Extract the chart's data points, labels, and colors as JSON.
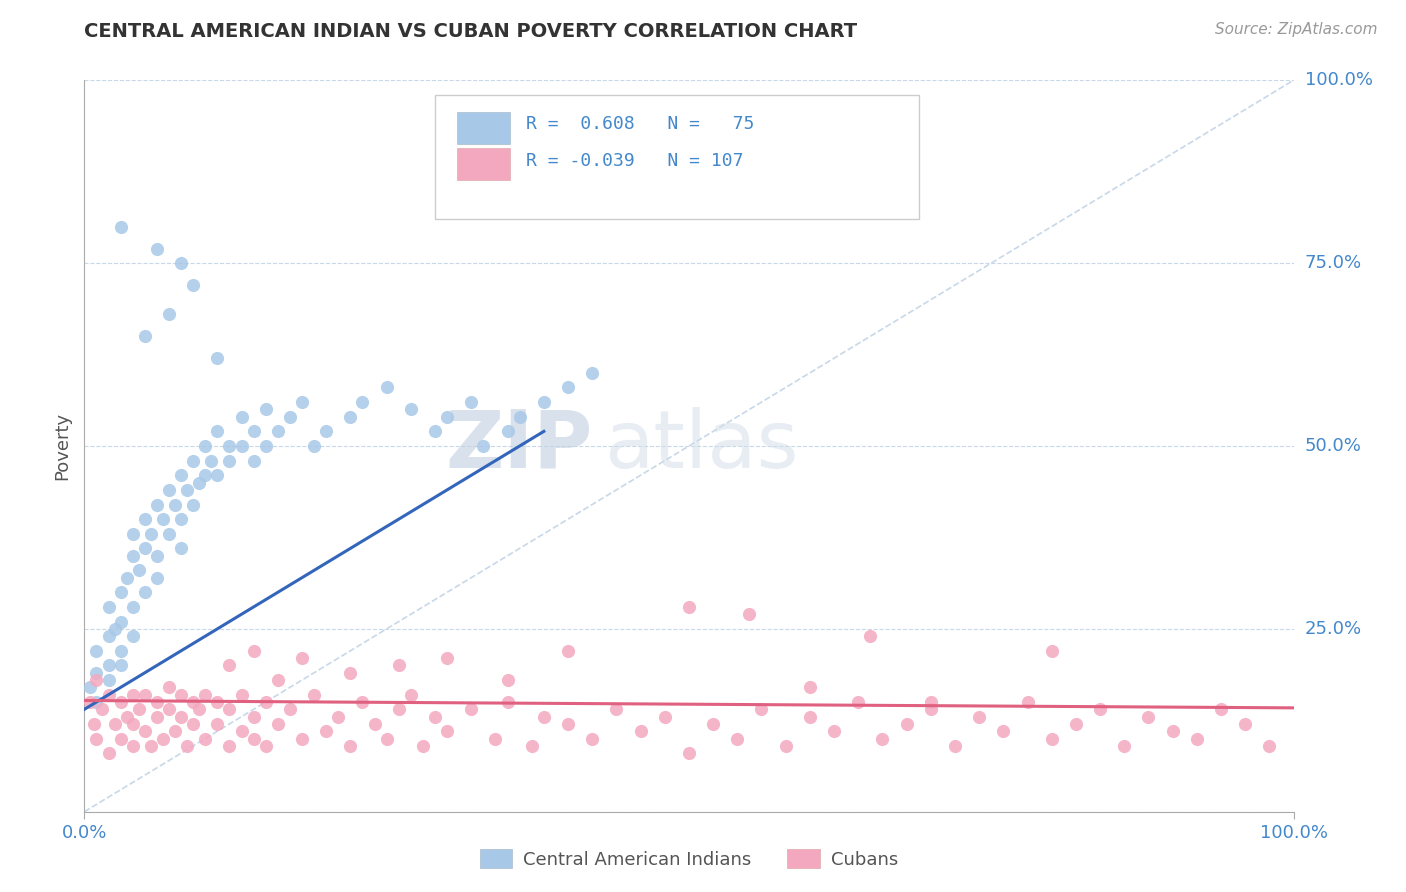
{
  "title": "CENTRAL AMERICAN INDIAN VS CUBAN POVERTY CORRELATION CHART",
  "source": "Source: ZipAtlas.com",
  "ylabel": "Poverty",
  "r_blue": 0.608,
  "n_blue": 75,
  "r_pink": -0.039,
  "n_pink": 107,
  "blue_color": "#A8C8E8",
  "pink_color": "#F4A8C0",
  "blue_line_color": "#3366BB",
  "pink_line_color": "#E06080",
  "diagonal_color": "#C8D8E8",
  "legend_label_blue": "Central American Indians",
  "legend_label_pink": "Cubans",
  "watermark_zip": "ZIP",
  "watermark_atlas": "atlas",
  "blue_scatter_x": [
    0.005,
    0.01,
    0.01,
    0.01,
    0.02,
    0.02,
    0.02,
    0.02,
    0.025,
    0.03,
    0.03,
    0.03,
    0.03,
    0.035,
    0.04,
    0.04,
    0.04,
    0.04,
    0.045,
    0.05,
    0.05,
    0.05,
    0.055,
    0.06,
    0.06,
    0.06,
    0.065,
    0.07,
    0.07,
    0.075,
    0.08,
    0.08,
    0.08,
    0.085,
    0.09,
    0.09,
    0.095,
    0.1,
    0.1,
    0.105,
    0.11,
    0.11,
    0.12,
    0.12,
    0.13,
    0.13,
    0.14,
    0.14,
    0.15,
    0.15,
    0.16,
    0.17,
    0.18,
    0.19,
    0.2,
    0.22,
    0.23,
    0.25,
    0.27,
    0.29,
    0.3,
    0.32,
    0.33,
    0.35,
    0.36,
    0.38,
    0.4,
    0.42,
    0.03,
    0.05,
    0.07,
    0.09,
    0.11,
    0.06,
    0.08
  ],
  "blue_scatter_y": [
    0.17,
    0.19,
    0.22,
    0.15,
    0.2,
    0.24,
    0.18,
    0.28,
    0.25,
    0.22,
    0.3,
    0.26,
    0.2,
    0.32,
    0.28,
    0.35,
    0.24,
    0.38,
    0.33,
    0.36,
    0.3,
    0.4,
    0.38,
    0.35,
    0.42,
    0.32,
    0.4,
    0.38,
    0.44,
    0.42,
    0.4,
    0.46,
    0.36,
    0.44,
    0.42,
    0.48,
    0.45,
    0.46,
    0.5,
    0.48,
    0.46,
    0.52,
    0.48,
    0.5,
    0.5,
    0.54,
    0.52,
    0.48,
    0.5,
    0.55,
    0.52,
    0.54,
    0.56,
    0.5,
    0.52,
    0.54,
    0.56,
    0.58,
    0.55,
    0.52,
    0.54,
    0.56,
    0.5,
    0.52,
    0.54,
    0.56,
    0.58,
    0.6,
    0.8,
    0.65,
    0.68,
    0.72,
    0.62,
    0.77,
    0.75
  ],
  "pink_scatter_x": [
    0.005,
    0.008,
    0.01,
    0.01,
    0.015,
    0.02,
    0.02,
    0.025,
    0.03,
    0.03,
    0.035,
    0.04,
    0.04,
    0.04,
    0.045,
    0.05,
    0.05,
    0.055,
    0.06,
    0.06,
    0.065,
    0.07,
    0.07,
    0.075,
    0.08,
    0.08,
    0.085,
    0.09,
    0.09,
    0.095,
    0.1,
    0.1,
    0.11,
    0.11,
    0.12,
    0.12,
    0.13,
    0.13,
    0.14,
    0.14,
    0.15,
    0.15,
    0.16,
    0.17,
    0.18,
    0.19,
    0.2,
    0.21,
    0.22,
    0.23,
    0.24,
    0.25,
    0.26,
    0.27,
    0.28,
    0.29,
    0.3,
    0.32,
    0.34,
    0.35,
    0.37,
    0.38,
    0.4,
    0.42,
    0.44,
    0.46,
    0.48,
    0.5,
    0.52,
    0.54,
    0.56,
    0.58,
    0.6,
    0.62,
    0.64,
    0.66,
    0.68,
    0.7,
    0.72,
    0.74,
    0.76,
    0.78,
    0.8,
    0.82,
    0.84,
    0.86,
    0.88,
    0.9,
    0.92,
    0.94,
    0.96,
    0.98,
    0.12,
    0.14,
    0.16,
    0.18,
    0.22,
    0.26,
    0.3,
    0.35,
    0.4,
    0.5,
    0.6,
    0.7,
    0.8,
    0.55,
    0.65
  ],
  "pink_scatter_y": [
    0.15,
    0.12,
    0.18,
    0.1,
    0.14,
    0.16,
    0.08,
    0.12,
    0.15,
    0.1,
    0.13,
    0.16,
    0.09,
    0.12,
    0.14,
    0.11,
    0.16,
    0.09,
    0.13,
    0.15,
    0.1,
    0.14,
    0.17,
    0.11,
    0.13,
    0.16,
    0.09,
    0.15,
    0.12,
    0.14,
    0.1,
    0.16,
    0.12,
    0.15,
    0.09,
    0.14,
    0.11,
    0.16,
    0.1,
    0.13,
    0.15,
    0.09,
    0.12,
    0.14,
    0.1,
    0.16,
    0.11,
    0.13,
    0.09,
    0.15,
    0.12,
    0.1,
    0.14,
    0.16,
    0.09,
    0.13,
    0.11,
    0.14,
    0.1,
    0.15,
    0.09,
    0.13,
    0.12,
    0.1,
    0.14,
    0.11,
    0.13,
    0.08,
    0.12,
    0.1,
    0.14,
    0.09,
    0.13,
    0.11,
    0.15,
    0.1,
    0.12,
    0.14,
    0.09,
    0.13,
    0.11,
    0.15,
    0.1,
    0.12,
    0.14,
    0.09,
    0.13,
    0.11,
    0.1,
    0.14,
    0.12,
    0.09,
    0.2,
    0.22,
    0.18,
    0.21,
    0.19,
    0.2,
    0.21,
    0.18,
    0.22,
    0.28,
    0.17,
    0.15,
    0.22,
    0.27,
    0.24
  ]
}
